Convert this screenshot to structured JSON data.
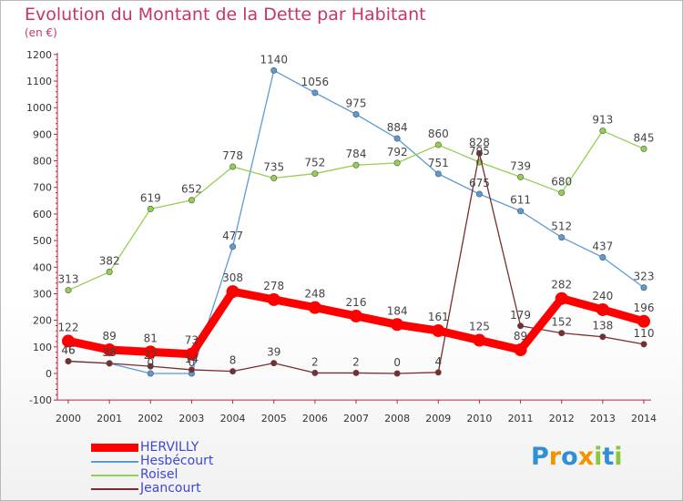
{
  "chart_data": {
    "type": "line",
    "title": "Evolution du Montant de la Dette par Habitant",
    "subtitle": "(en €)",
    "xlabel": "",
    "ylabel": "",
    "x": [
      "2000",
      "2001",
      "2002",
      "2003",
      "2004",
      "2005",
      "2006",
      "2007",
      "2008",
      "2009",
      "2010",
      "2011",
      "2012",
      "2013",
      "2014"
    ],
    "y_ticks": [
      "-100",
      "0",
      "100",
      "200",
      "300",
      "400",
      "500",
      "600",
      "700",
      "800",
      "900",
      "1000",
      "1100",
      "1200"
    ],
    "ylim": [
      -100,
      1200
    ],
    "grid": false,
    "legend_position": "bottom-left",
    "series": [
      {
        "name": "Hesbécourt",
        "color": "#5b9bd5",
        "values": [
          46,
          38,
          0,
          0,
          477,
          1140,
          1056,
          975,
          884,
          751,
          675,
          611,
          512,
          437,
          323
        ],
        "labels": [
          "46",
          "38",
          "0",
          "0",
          "477",
          "1140",
          "1056",
          "975",
          "884",
          "751",
          "675",
          "611",
          "512",
          "437",
          "323"
        ]
      },
      {
        "name": "Roisel",
        "color": "#92d050",
        "values": [
          313,
          382,
          619,
          652,
          778,
          735,
          752,
          784,
          792,
          860,
          795,
          739,
          680,
          913,
          845
        ],
        "labels": [
          "313",
          "382",
          "619",
          "652",
          "778",
          "735",
          "752",
          "784",
          "792",
          "860",
          "795",
          "739",
          "680",
          "913",
          "845"
        ]
      },
      {
        "name": "Jeancourt",
        "color": "#7b2c2c",
        "values": [
          46,
          38,
          27,
          14,
          8,
          39,
          2,
          2,
          0,
          4,
          828,
          179,
          152,
          138,
          110
        ],
        "labels": [
          "46",
          "38",
          "27",
          "14",
          "8",
          "39",
          "2",
          "2",
          "0",
          "4",
          "828",
          "179",
          "152",
          "138",
          "110"
        ]
      },
      {
        "name": "HERVILLY",
        "color": "#ff0000",
        "values": [
          122,
          89,
          81,
          73,
          308,
          278,
          248,
          216,
          184,
          161,
          125,
          89,
          282,
          240,
          196
        ],
        "labels": [
          "122",
          "89",
          "81",
          "73",
          "308",
          "278",
          "248",
          "216",
          "184",
          "161",
          "125",
          "89",
          "282",
          "240",
          "196"
        ]
      }
    ]
  },
  "legend": {
    "items": [
      {
        "label": "HERVILLY",
        "color": "#ff0000"
      },
      {
        "label": "Hesbécourt",
        "color": "#5b9bd5"
      },
      {
        "label": "Roisel",
        "color": "#92d050"
      },
      {
        "label": "Jeancourt",
        "color": "#7b2c2c"
      }
    ]
  },
  "logo": {
    "text": "Proxiti",
    "letters": [
      {
        "ch": "P",
        "color": "#2f8fd8"
      },
      {
        "ch": "r",
        "color": "#f29400"
      },
      {
        "ch": "o",
        "color": "#2f8fd8"
      },
      {
        "ch": "x",
        "color": "#f29400"
      },
      {
        "ch": "i",
        "color": "#8cc63f"
      },
      {
        "ch": "t",
        "color": "#2f8fd8"
      },
      {
        "ch": "i",
        "color": "#8cc63f"
      }
    ]
  }
}
